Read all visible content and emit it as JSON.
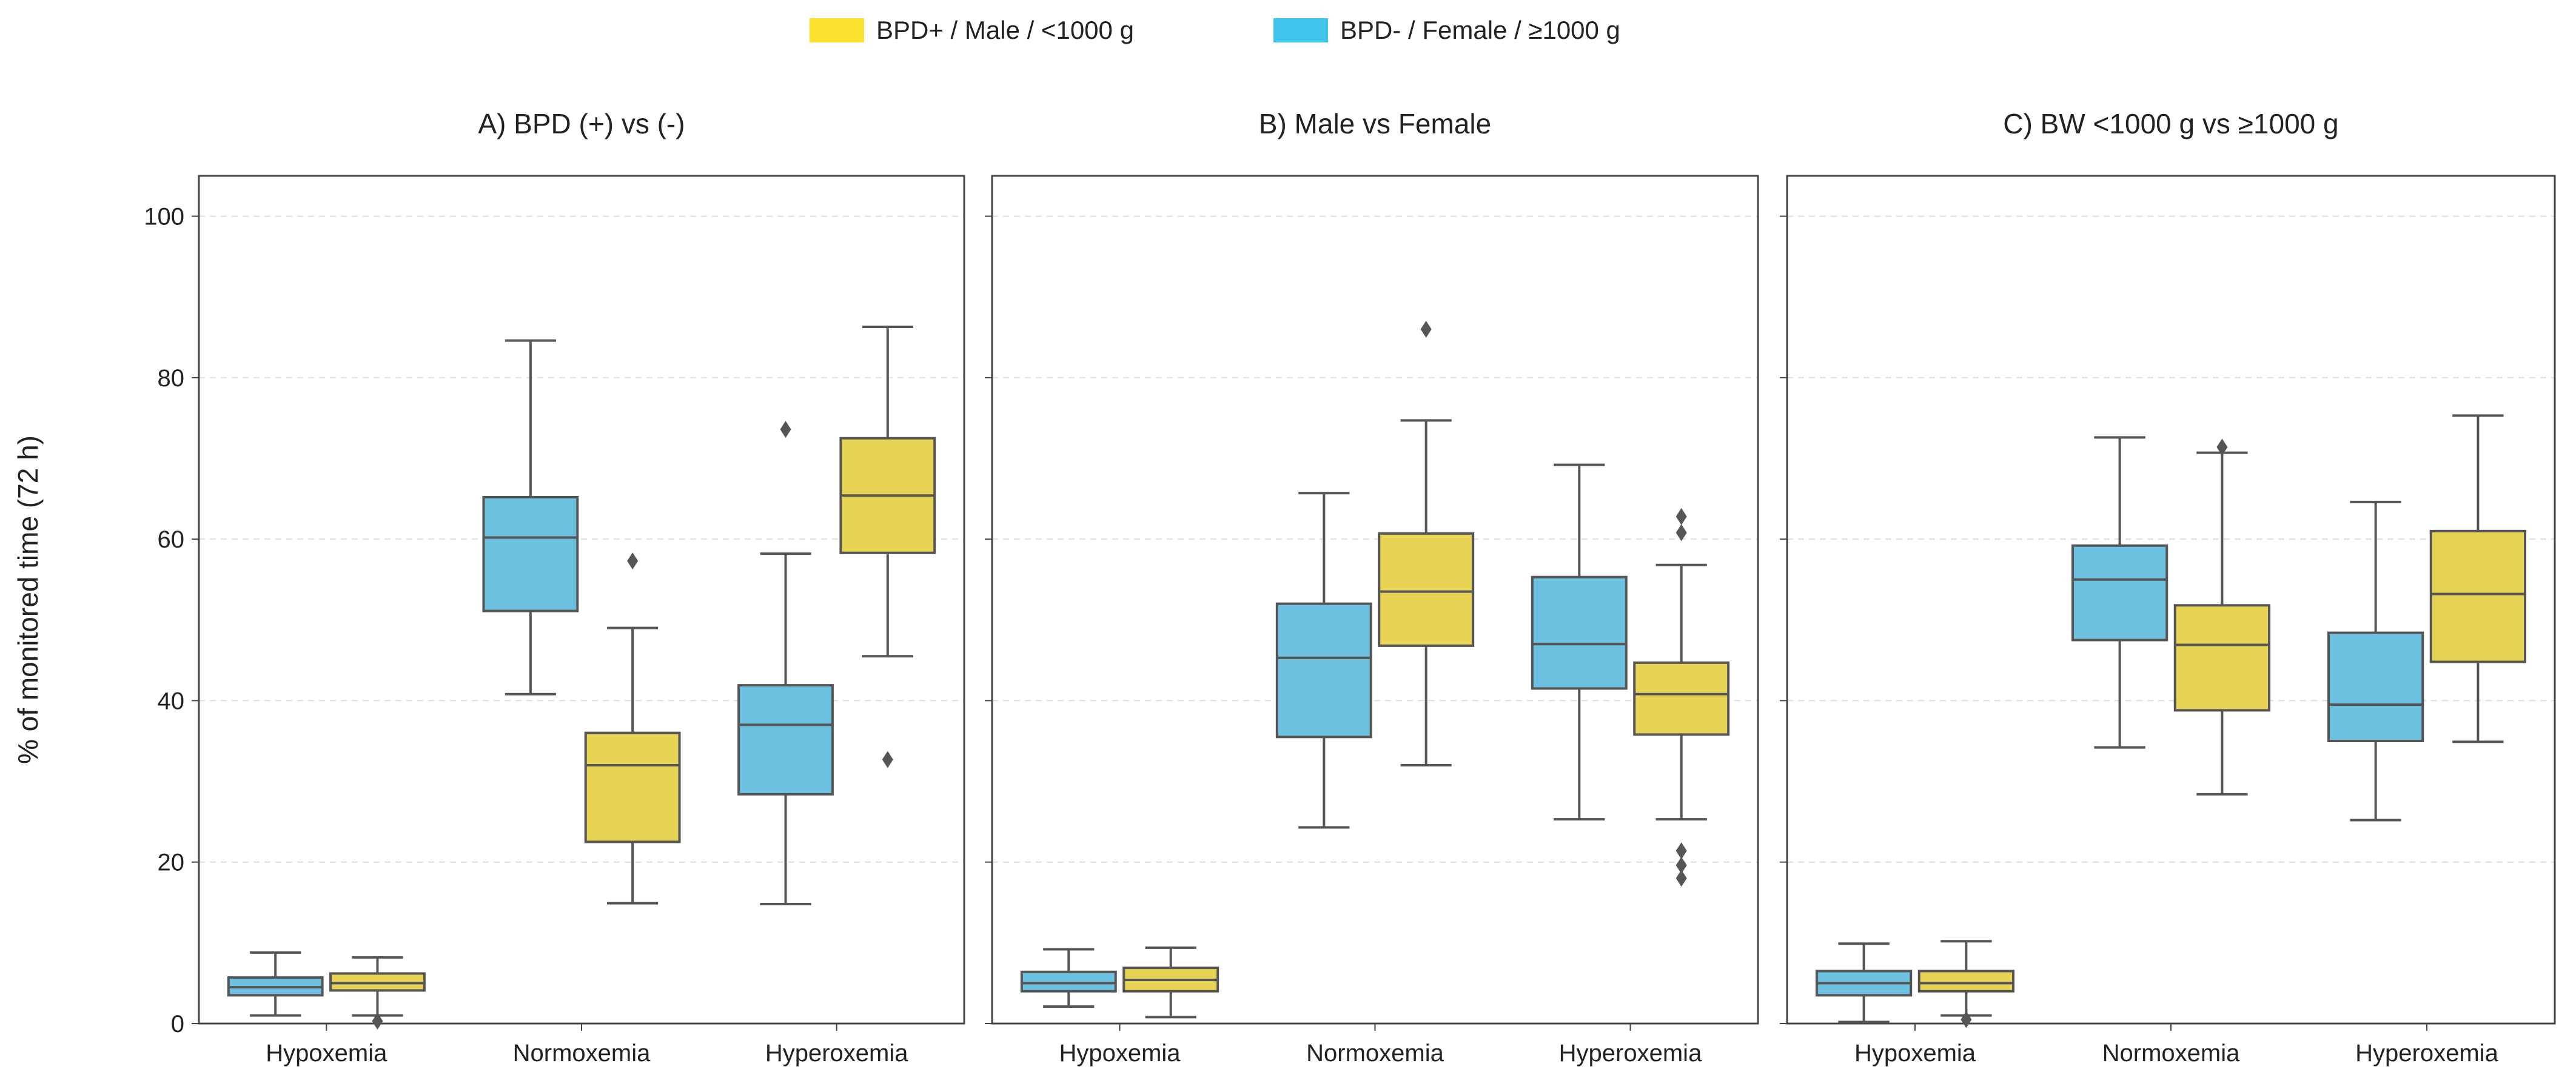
{
  "legend": {
    "placement": "top-center",
    "items": [
      {
        "label": "BPD+ / Male / <1000 g",
        "color": "#FDE330"
      },
      {
        "label": "BPD- / Female / ≥1000 g",
        "color": "#3FC4EC"
      }
    ]
  },
  "ylabel": "% of monitored time (72 h)",
  "chart_data": [
    {
      "type": "box",
      "title": "A) BPD (+) vs (-)",
      "categories": [
        "Hypoxemia",
        "Normoxemia",
        "Hyperoxemia"
      ],
      "ylim": [
        0,
        105
      ],
      "yticks": [
        0,
        20,
        40,
        60,
        80,
        100
      ],
      "grid": true,
      "series": [
        {
          "color": "#6BC1DF",
          "boxes": [
            {
              "low": 1.0,
              "q1": 3.5,
              "median": 4.5,
              "q3": 5.7,
              "high": 8.8,
              "outliers": []
            },
            {
              "low": 40.8,
              "q1": 51.1,
              "median": 60.2,
              "q3": 65.2,
              "high": 84.6,
              "outliers": []
            },
            {
              "low": 14.8,
              "q1": 28.4,
              "median": 37.0,
              "q3": 41.9,
              "high": 58.2,
              "outliers": [
                73.6
              ]
            }
          ]
        },
        {
          "color": "#E8D454",
          "boxes": [
            {
              "low": 1.0,
              "q1": 4.1,
              "median": 5.0,
              "q3": 6.2,
              "high": 8.2,
              "outliers": [
                0.3
              ]
            },
            {
              "low": 14.9,
              "q1": 22.5,
              "median": 32.0,
              "q3": 36.0,
              "high": 49.0,
              "outliers": [
                57.3
              ]
            },
            {
              "low": 45.5,
              "q1": 58.3,
              "median": 65.4,
              "q3": 72.5,
              "high": 86.3,
              "outliers": [
                32.7
              ]
            }
          ]
        }
      ]
    },
    {
      "type": "box",
      "title": "B) Male vs Female",
      "categories": [
        "Hypoxemia",
        "Normoxemia",
        "Hyperoxemia"
      ],
      "ylim": [
        0,
        105
      ],
      "yticks": [
        0,
        20,
        40,
        60,
        80,
        100
      ],
      "grid": true,
      "series": [
        {
          "color": "#6BC1DF",
          "boxes": [
            {
              "low": 2.1,
              "q1": 4.0,
              "median": 5.0,
              "q3": 6.4,
              "high": 9.2,
              "outliers": []
            },
            {
              "low": 24.3,
              "q1": 35.5,
              "median": 45.3,
              "q3": 52.0,
              "high": 65.7,
              "outliers": []
            },
            {
              "low": 25.3,
              "q1": 41.5,
              "median": 47.0,
              "q3": 55.3,
              "high": 69.2,
              "outliers": []
            }
          ]
        },
        {
          "color": "#E8D454",
          "boxes": [
            {
              "low": 0.8,
              "q1": 4.0,
              "median": 5.4,
              "q3": 6.9,
              "high": 9.4,
              "outliers": []
            },
            {
              "low": 32.0,
              "q1": 46.8,
              "median": 53.5,
              "q3": 60.7,
              "high": 74.7,
              "outliers": [
                86.0
              ]
            },
            {
              "low": 25.3,
              "q1": 35.8,
              "median": 40.8,
              "q3": 44.7,
              "high": 56.8,
              "outliers": [
                62.8,
                60.8,
                21.4,
                19.6,
                18.0
              ]
            }
          ]
        }
      ]
    },
    {
      "type": "box",
      "title": "C) BW <1000 g vs ≥1000 g",
      "categories": [
        "Hypoxemia",
        "Normoxemia",
        "Hyperoxemia"
      ],
      "ylim": [
        0,
        105
      ],
      "yticks": [
        0,
        20,
        40,
        60,
        80,
        100
      ],
      "grid": true,
      "series": [
        {
          "color": "#6BC1DF",
          "boxes": [
            {
              "low": 0.2,
              "q1": 3.5,
              "median": 5.0,
              "q3": 6.5,
              "high": 9.9,
              "outliers": []
            },
            {
              "low": 34.2,
              "q1": 47.5,
              "median": 55.0,
              "q3": 59.2,
              "high": 72.6,
              "outliers": []
            },
            {
              "low": 25.2,
              "q1": 35.0,
              "median": 39.5,
              "q3": 48.4,
              "high": 64.6,
              "outliers": []
            }
          ]
        },
        {
          "color": "#E8D454",
          "boxes": [
            {
              "low": 1.0,
              "q1": 4.0,
              "median": 5.0,
              "q3": 6.5,
              "high": 10.2,
              "outliers": [
                0.5
              ]
            },
            {
              "low": 28.4,
              "q1": 38.8,
              "median": 46.9,
              "q3": 51.8,
              "high": 70.7,
              "outliers": [
                71.4
              ]
            },
            {
              "low": 34.9,
              "q1": 44.8,
              "median": 53.2,
              "q3": 61.0,
              "high": 75.3,
              "outliers": []
            }
          ]
        }
      ]
    }
  ]
}
